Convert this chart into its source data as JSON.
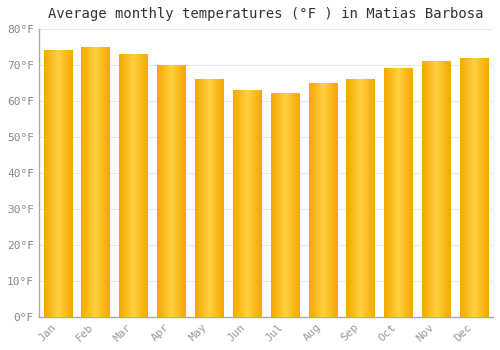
{
  "title": "Average monthly temperatures (°F ) in Matias Barbosa",
  "months": [
    "Jan",
    "Feb",
    "Mar",
    "Apr",
    "May",
    "Jun",
    "Jul",
    "Aug",
    "Sep",
    "Oct",
    "Nov",
    "Dec"
  ],
  "values": [
    74,
    75,
    73,
    70,
    66,
    63,
    62,
    65,
    66,
    69,
    71,
    72
  ],
  "ylim": [
    0,
    80
  ],
  "yticks": [
    0,
    10,
    20,
    30,
    40,
    50,
    60,
    70,
    80
  ],
  "ytick_labels": [
    "0°F",
    "10°F",
    "20°F",
    "30°F",
    "40°F",
    "50°F",
    "60°F",
    "70°F",
    "80°F"
  ],
  "bar_color_edge": "#F5A800",
  "bar_color_center": "#FFD040",
  "background_color": "#FFFFFF",
  "plot_bg_color": "#FFFFFF",
  "grid_color": "#E8E8E8",
  "title_fontsize": 10,
  "tick_fontsize": 8,
  "font_family": "monospace",
  "bar_width": 0.75,
  "n_gradient_steps": 50
}
